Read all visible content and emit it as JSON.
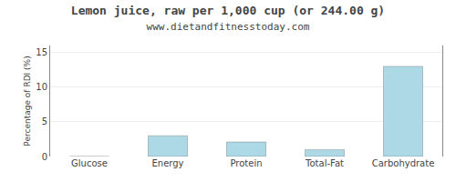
{
  "chart_data": {
    "type": "bar",
    "title": "Lemon juice, raw per 1,000 cup (or 244.00 g)",
    "subtitle": "www.dietandfitnesstoday.com",
    "categories": [
      "Glucose",
      "Energy",
      "Protein",
      "Total-Fat",
      "Carbohydrate"
    ],
    "values": [
      0,
      3.0,
      2.1,
      1.0,
      13.0
    ],
    "color": "#add8e6",
    "ylabel": "Percentage of RDI (%)",
    "ylim": [
      0,
      16
    ],
    "yticks": [
      0,
      5,
      10,
      15
    ],
    "grid": true
  }
}
